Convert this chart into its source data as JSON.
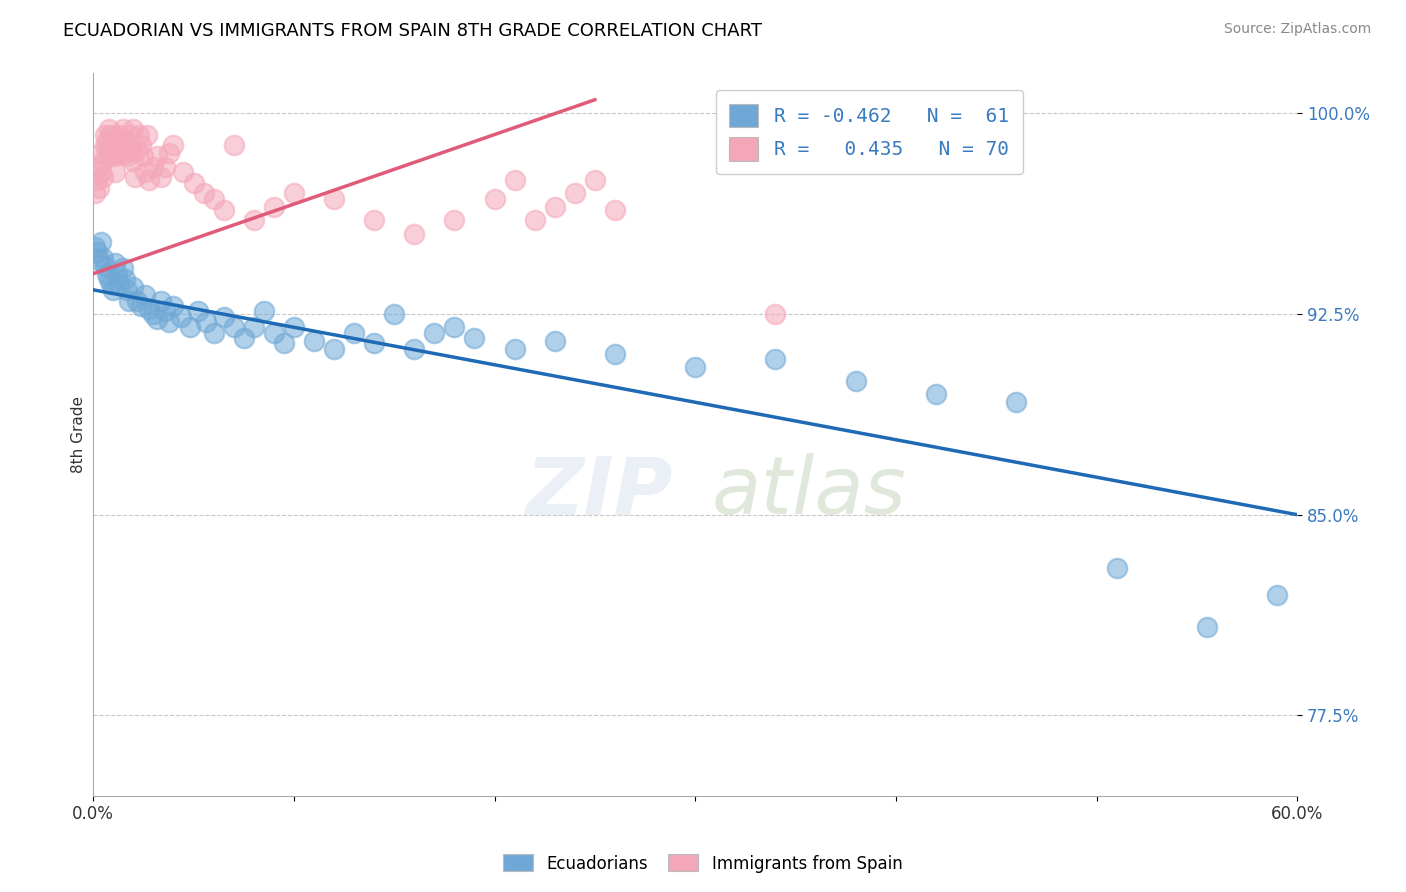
{
  "title": "ECUADORIAN VS IMMIGRANTS FROM SPAIN 8TH GRADE CORRELATION CHART",
  "source_text": "Source: ZipAtlas.com",
  "ylabel": "8th Grade",
  "x_min": 0.0,
  "x_max": 0.6,
  "y_min": 0.745,
  "y_max": 1.015,
  "x_ticks": [
    0.0,
    0.1,
    0.2,
    0.3,
    0.4,
    0.5,
    0.6
  ],
  "x_tick_labels": [
    "0.0%",
    "",
    "",
    "",
    "",
    "",
    "60.0%"
  ],
  "y_ticks": [
    0.775,
    0.85,
    0.925,
    1.0
  ],
  "y_tick_labels": [
    "77.5%",
    "85.0%",
    "92.5%",
    "100.0%"
  ],
  "legend_R_blue": "-0.462",
  "legend_N_blue": "61",
  "legend_R_pink": "0.435",
  "legend_N_pink": "70",
  "blue_color": "#6fa8d6",
  "pink_color": "#f4a7b9",
  "trendline_blue_color": "#1f6ab5",
  "trendline_pink_color": "#e05a7a",
  "blue_trend_x0": 0.0,
  "blue_trend_y0": 0.934,
  "blue_trend_x1": 0.6,
  "blue_trend_y1": 0.85,
  "pink_trend_x0": 0.0,
  "pink_trend_y0": 0.94,
  "pink_trend_x1": 0.25,
  "pink_trend_y1": 1.005,
  "blue_scatter_x": [
    0.001,
    0.002,
    0.003,
    0.004,
    0.005,
    0.006,
    0.007,
    0.008,
    0.009,
    0.01,
    0.011,
    0.012,
    0.013,
    0.015,
    0.016,
    0.017,
    0.018,
    0.02,
    0.022,
    0.024,
    0.026,
    0.028,
    0.03,
    0.032,
    0.034,
    0.036,
    0.038,
    0.04,
    0.044,
    0.048,
    0.052,
    0.056,
    0.06,
    0.065,
    0.07,
    0.075,
    0.08,
    0.085,
    0.09,
    0.095,
    0.1,
    0.11,
    0.12,
    0.13,
    0.14,
    0.15,
    0.16,
    0.17,
    0.18,
    0.19,
    0.21,
    0.23,
    0.26,
    0.3,
    0.34,
    0.38,
    0.42,
    0.46,
    0.51,
    0.555,
    0.59
  ],
  "blue_scatter_y": [
    0.95,
    0.948,
    0.945,
    0.952,
    0.946,
    0.943,
    0.94,
    0.938,
    0.936,
    0.934,
    0.944,
    0.94,
    0.936,
    0.942,
    0.938,
    0.934,
    0.93,
    0.935,
    0.93,
    0.928,
    0.932,
    0.927,
    0.925,
    0.923,
    0.93,
    0.926,
    0.922,
    0.928,
    0.924,
    0.92,
    0.926,
    0.922,
    0.918,
    0.924,
    0.92,
    0.916,
    0.92,
    0.926,
    0.918,
    0.914,
    0.92,
    0.915,
    0.912,
    0.918,
    0.914,
    0.925,
    0.912,
    0.918,
    0.92,
    0.916,
    0.912,
    0.915,
    0.91,
    0.905,
    0.908,
    0.9,
    0.895,
    0.892,
    0.83,
    0.808,
    0.82
  ],
  "pink_scatter_x": [
    0.001,
    0.002,
    0.003,
    0.003,
    0.004,
    0.004,
    0.005,
    0.005,
    0.006,
    0.006,
    0.007,
    0.007,
    0.008,
    0.008,
    0.009,
    0.009,
    0.01,
    0.01,
    0.011,
    0.011,
    0.012,
    0.012,
    0.013,
    0.013,
    0.014,
    0.015,
    0.015,
    0.016,
    0.016,
    0.017,
    0.018,
    0.018,
    0.019,
    0.02,
    0.02,
    0.021,
    0.022,
    0.023,
    0.024,
    0.025,
    0.026,
    0.027,
    0.028,
    0.03,
    0.032,
    0.034,
    0.036,
    0.038,
    0.04,
    0.045,
    0.05,
    0.055,
    0.06,
    0.065,
    0.07,
    0.08,
    0.09,
    0.1,
    0.12,
    0.14,
    0.16,
    0.18,
    0.2,
    0.21,
    0.22,
    0.23,
    0.24,
    0.25,
    0.26,
    0.34
  ],
  "pink_scatter_y": [
    0.97,
    0.975,
    0.972,
    0.98,
    0.978,
    0.985,
    0.982,
    0.976,
    0.988,
    0.992,
    0.986,
    0.99,
    0.984,
    0.994,
    0.988,
    0.992,
    0.986,
    0.99,
    0.984,
    0.978,
    0.99,
    0.985,
    0.988,
    0.992,
    0.986,
    0.988,
    0.994,
    0.985,
    0.99,
    0.984,
    0.988,
    0.992,
    0.986,
    0.982,
    0.994,
    0.976,
    0.986,
    0.992,
    0.988,
    0.984,
    0.978,
    0.992,
    0.975,
    0.98,
    0.984,
    0.976,
    0.98,
    0.985,
    0.988,
    0.978,
    0.974,
    0.97,
    0.968,
    0.964,
    0.988,
    0.96,
    0.965,
    0.97,
    0.968,
    0.96,
    0.955,
    0.96,
    0.968,
    0.975,
    0.96,
    0.965,
    0.97,
    0.975,
    0.964,
    0.925
  ]
}
